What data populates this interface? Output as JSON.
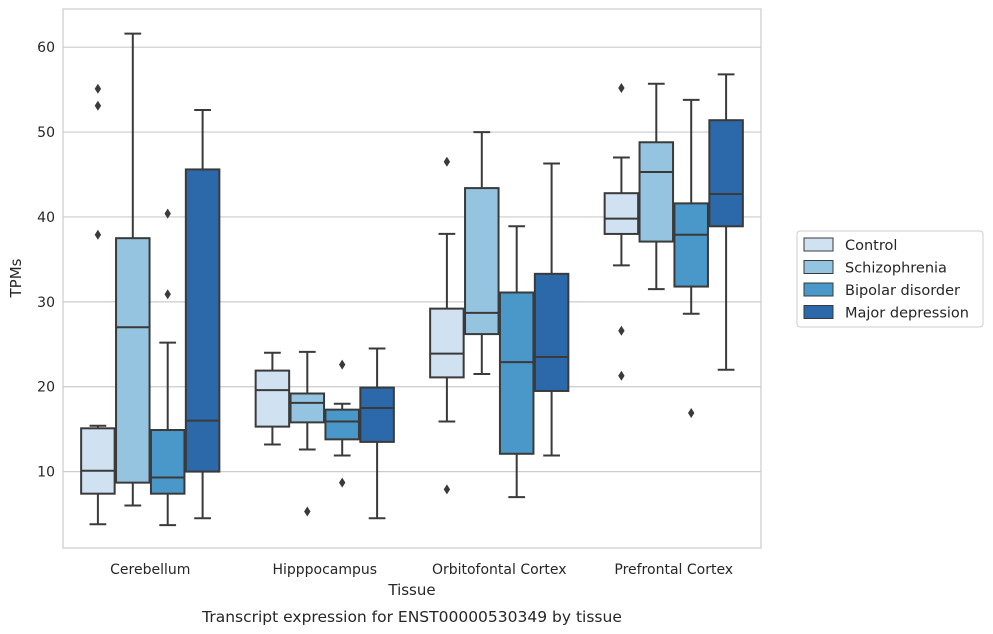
{
  "chart_data": {
    "type": "boxplot",
    "title": "",
    "caption": "Transcript expression for ENST00000530349 by tissue",
    "xlabel": "Tissue",
    "ylabel": "TPMs",
    "ylim": [
      1,
      64.5
    ],
    "yticks": [
      10,
      20,
      30,
      40,
      50,
      60
    ],
    "grid": "horizontal",
    "legend_position": "right-outside",
    "categories": [
      "Cerebellum",
      "Hipppocampus",
      "Orbitofontal Cortex",
      "Prefrontal Cortex"
    ],
    "series": [
      {
        "name": "Control",
        "color": "#d0e1f2",
        "boxes": [
          {
            "whislo": 3.8,
            "q1": 7.4,
            "med": 10.1,
            "q3": 15.1,
            "whishi": 15.4,
            "fliers": [
              37.9,
              53.1,
              55.1
            ]
          },
          {
            "whislo": 13.2,
            "q1": 15.3,
            "med": 19.6,
            "q3": 21.9,
            "whishi": 24.0,
            "fliers": []
          },
          {
            "whislo": 15.9,
            "q1": 21.1,
            "med": 23.9,
            "q3": 29.2,
            "whishi": 38.0,
            "fliers": [
              7.9,
              46.5
            ]
          },
          {
            "whislo": 34.3,
            "q1": 38.0,
            "med": 39.8,
            "q3": 42.8,
            "whishi": 47.0,
            "fliers": [
              21.3,
              26.6,
              55.2
            ]
          }
        ]
      },
      {
        "name": "Schizophrenia",
        "color": "#94c4df",
        "boxes": [
          {
            "whislo": 6.0,
            "q1": 8.7,
            "med": 27.0,
            "q3": 37.5,
            "whishi": 61.6,
            "fliers": []
          },
          {
            "whislo": 12.6,
            "q1": 15.8,
            "med": 18.1,
            "q3": 19.2,
            "whishi": 24.1,
            "fliers": [
              5.3
            ]
          },
          {
            "whislo": 21.5,
            "q1": 26.2,
            "med": 28.7,
            "q3": 43.4,
            "whishi": 50.0,
            "fliers": []
          },
          {
            "whislo": 31.5,
            "q1": 37.1,
            "med": 45.3,
            "q3": 48.8,
            "whishi": 55.7,
            "fliers": []
          }
        ]
      },
      {
        "name": "Bipolar disorder",
        "color": "#4a98c9",
        "boxes": [
          {
            "whislo": 3.7,
            "q1": 7.4,
            "med": 9.3,
            "q3": 14.9,
            "whishi": 25.2,
            "fliers": [
              30.9,
              40.4
            ]
          },
          {
            "whislo": 11.9,
            "q1": 13.8,
            "med": 15.9,
            "q3": 17.3,
            "whishi": 18.0,
            "fliers": [
              8.7,
              22.6
            ]
          },
          {
            "whislo": 7.0,
            "q1": 12.1,
            "med": 22.9,
            "q3": 31.1,
            "whishi": 38.9,
            "fliers": []
          },
          {
            "whislo": 28.6,
            "q1": 31.8,
            "med": 37.9,
            "q3": 41.6,
            "whishi": 53.8,
            "fliers": [
              16.9
            ]
          }
        ]
      },
      {
        "name": "Major depression",
        "color": "#2b69aa",
        "boxes": [
          {
            "whislo": 4.5,
            "q1": 10.0,
            "med": 16.0,
            "q3": 45.6,
            "whishi": 52.6,
            "fliers": []
          },
          {
            "whislo": 4.5,
            "q1": 13.5,
            "med": 17.5,
            "q3": 19.9,
            "whishi": 24.5,
            "fliers": []
          },
          {
            "whislo": 11.9,
            "q1": 19.5,
            "med": 23.5,
            "q3": 33.3,
            "whishi": 46.3,
            "fliers": []
          },
          {
            "whislo": 22.0,
            "q1": 38.9,
            "med": 42.7,
            "q3": 51.4,
            "whishi": 56.8,
            "fliers": []
          }
        ]
      }
    ]
  }
}
